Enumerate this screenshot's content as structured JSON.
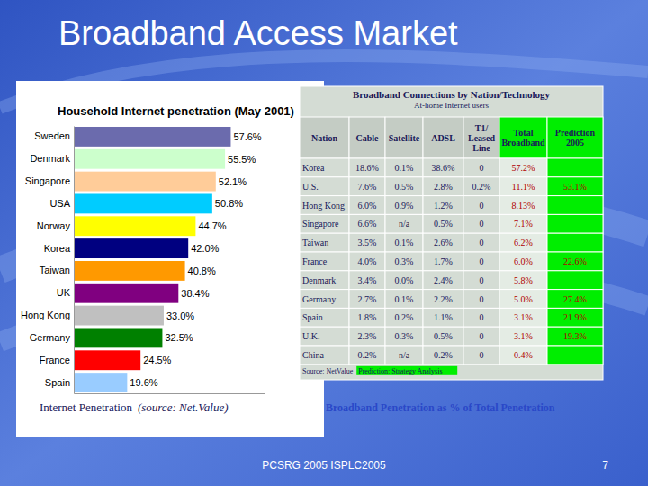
{
  "slide": {
    "title": "Broadband Access Market",
    "footer": "PCSRG 2005 ISPLC2005",
    "page": "7"
  },
  "chart_data": {
    "type": "bar",
    "orientation": "horizontal",
    "title": "Household Internet penetration (May 2001)",
    "annotations": [
      "Internet Penetration",
      "(source: Net.Value)"
    ],
    "categories": [
      "Sweden",
      "Denmark",
      "Singapore",
      "USA",
      "Norway",
      "Korea",
      "Taiwan",
      "UK",
      "Hong Kong",
      "Germany",
      "France",
      "Spain"
    ],
    "values": [
      57.6,
      55.5,
      52.1,
      50.8,
      44.7,
      42.0,
      40.8,
      38.4,
      33.0,
      32.5,
      24.5,
      19.6
    ],
    "value_labels": [
      "57.6%",
      "55.5%",
      "52.1%",
      "50.8%",
      "44.7%",
      "42.0%",
      "40.8%",
      "38.4%",
      "33.0%",
      "32.5%",
      "24.5%",
      "19.6%"
    ],
    "colors": [
      "#6b6bad",
      "#ccffcc",
      "#ffcc99",
      "#00ccff",
      "#ffff00",
      "#000080",
      "#ff9900",
      "#800080",
      "#c0c0c0",
      "#008000",
      "#ff0000",
      "#99ccff"
    ],
    "xlim": [
      0,
      70
    ],
    "data_labels": true,
    "tick_labels": "y"
  },
  "table": {
    "title": "Broadband Connections by Nation/Technology",
    "subtitle": "At-home Internet users",
    "columns": [
      "Nation",
      "Cable",
      "Satellite",
      "ADSL",
      "T1/ Leased Line",
      "Total Broadband",
      "Prediction 2005"
    ],
    "rows": [
      [
        "Korea",
        "18.6%",
        "0.1%",
        "38.6%",
        "0",
        "57.2%",
        null
      ],
      [
        "U.S.",
        "7.6%",
        "0.5%",
        "2.8%",
        "0.2%",
        "11.1%",
        "53.1%"
      ],
      [
        "Hong Kong",
        "6.0%",
        "0.9%",
        "1.2%",
        "0",
        "8.13%",
        null
      ],
      [
        "Singapore",
        "6.6%",
        "n/a",
        "0.5%",
        "0",
        "7.1%",
        null
      ],
      [
        "Taiwan",
        "3.5%",
        "0.1%",
        "2.6%",
        "0",
        "6.2%",
        null
      ],
      [
        "France",
        "4.0%",
        "0.3%",
        "1.7%",
        "0",
        "6.0%",
        "22.6%"
      ],
      [
        "Denmark",
        "3.4%",
        "0.0%",
        "2.4%",
        "0",
        "5.8%",
        null
      ],
      [
        "Germany",
        "2.7%",
        "0.1%",
        "2.2%",
        "0",
        "5.0%",
        "27.4%"
      ],
      [
        "Spain",
        "1.8%",
        "0.2%",
        "1.1%",
        "0",
        "3.1%",
        "21.9%"
      ],
      [
        "U.K.",
        "2.3%",
        "0.3%",
        "0.5%",
        "0",
        "3.1%",
        "19.3%"
      ],
      [
        "China",
        "0.2%",
        "n/a",
        "0.2%",
        "0",
        "0.4%",
        null
      ]
    ],
    "source": "Source: NetValue",
    "source_highlight": "Prediction: Strategy Analysis",
    "caption": "Broadband Penetration as % of Total Penetration"
  }
}
